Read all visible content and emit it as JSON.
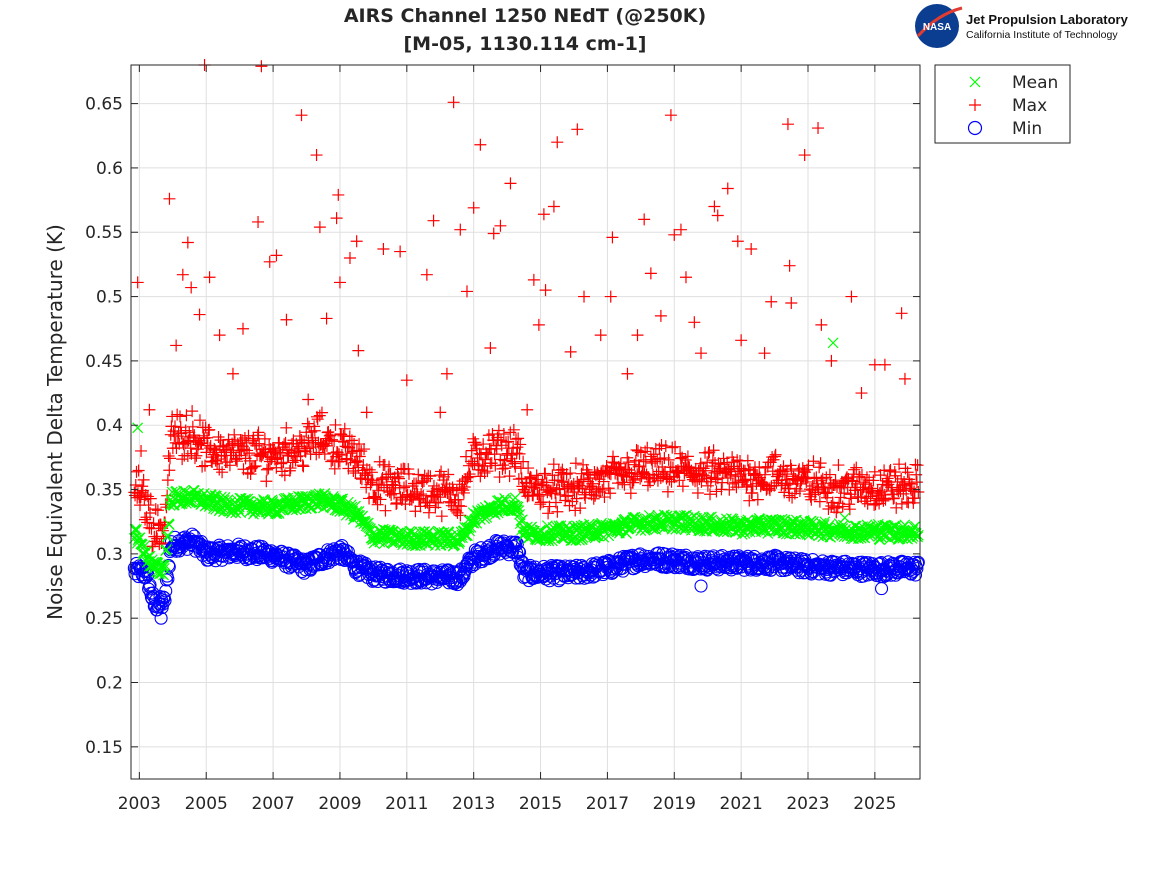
{
  "logo": {
    "badge_text": "NASA",
    "org_name": "Jet Propulsion Laboratory",
    "org_sub": "California Institute of Technology"
  },
  "colors": {
    "mean": "#00ff00",
    "max": "#ff0000",
    "min": "#0000ff",
    "axis": "#262626",
    "grid": "#dfdfdf",
    "logo_badge": "#0b3d91"
  },
  "chart_data": {
    "type": "scatter",
    "title": [
      "AIRS Channel 1250 NEdT (@250K)",
      "[M-05, 1130.114 cm-1]"
    ],
    "xlabel": "",
    "ylabel": "Noise Equivalent Delta Temperature (K)",
    "xlim": [
      2002.75,
      2026.35
    ],
    "ylim": [
      0.125,
      0.68
    ],
    "xticks": [
      2003,
      2005,
      2007,
      2009,
      2011,
      2013,
      2015,
      2017,
      2019,
      2021,
      2023,
      2025
    ],
    "yticks": [
      0.15,
      0.2,
      0.25,
      0.3,
      0.35,
      0.4,
      0.45,
      0.5,
      0.55,
      0.6,
      0.65
    ],
    "ytick_labels": [
      "0.15",
      "0.2",
      "0.25",
      "0.3",
      "0.35",
      "0.4",
      "0.45",
      "0.5",
      "0.55",
      "0.6",
      "0.65"
    ],
    "grid": true,
    "legend_position": "outside-top-right",
    "series": [
      {
        "name": "Mean",
        "marker": "x",
        "color": "#00ff00",
        "baseline": [
          [
            2002.85,
            0.318
          ],
          [
            2003.2,
            0.3
          ],
          [
            2003.45,
            0.288
          ],
          [
            2003.75,
            0.289
          ],
          [
            2003.95,
            0.343
          ],
          [
            2004.6,
            0.344
          ],
          [
            2005.5,
            0.338
          ],
          [
            2007.0,
            0.336
          ],
          [
            2008.4,
            0.342
          ],
          [
            2009.0,
            0.338
          ],
          [
            2009.5,
            0.331
          ],
          [
            2010.0,
            0.314
          ],
          [
            2011.0,
            0.312
          ],
          [
            2012.0,
            0.312
          ],
          [
            2012.6,
            0.311
          ],
          [
            2013.0,
            0.328
          ],
          [
            2013.7,
            0.337
          ],
          [
            2014.3,
            0.339
          ],
          [
            2014.5,
            0.316
          ],
          [
            2016.0,
            0.316
          ],
          [
            2017.0,
            0.319
          ],
          [
            2018.0,
            0.324
          ],
          [
            2019.0,
            0.325
          ],
          [
            2020.0,
            0.323
          ],
          [
            2021.0,
            0.321
          ],
          [
            2022.0,
            0.322
          ],
          [
            2023.0,
            0.32
          ],
          [
            2024.0,
            0.318
          ],
          [
            2025.0,
            0.317
          ],
          [
            2026.3,
            0.317
          ]
        ],
        "outliers": [
          [
            2002.95,
            0.398
          ],
          [
            2023.75,
            0.464
          ],
          [
            2024.1,
            0.328
          ],
          [
            2025.1,
            0.323
          ]
        ]
      },
      {
        "name": "Max",
        "marker": "+",
        "color": "#ff0000",
        "baseline": [
          [
            2002.85,
            0.345
          ],
          [
            2003.2,
            0.33
          ],
          [
            2003.45,
            0.31
          ],
          [
            2003.75,
            0.312
          ],
          [
            2003.95,
            0.382
          ],
          [
            2004.6,
            0.385
          ],
          [
            2005.0,
            0.372
          ],
          [
            2006.0,
            0.368
          ],
          [
            2007.0,
            0.368
          ],
          [
            2008.0,
            0.375
          ],
          [
            2008.4,
            0.383
          ],
          [
            2009.0,
            0.373
          ],
          [
            2009.5,
            0.366
          ],
          [
            2010.0,
            0.345
          ],
          [
            2011.0,
            0.341
          ],
          [
            2012.0,
            0.339
          ],
          [
            2012.6,
            0.337
          ],
          [
            2013.0,
            0.365
          ],
          [
            2013.7,
            0.37
          ],
          [
            2014.3,
            0.372
          ],
          [
            2014.5,
            0.343
          ],
          [
            2015.0,
            0.342
          ],
          [
            2016.0,
            0.341
          ],
          [
            2017.0,
            0.348
          ],
          [
            2018.0,
            0.357
          ],
          [
            2019.0,
            0.356
          ],
          [
            2020.0,
            0.353
          ],
          [
            2021.0,
            0.351
          ],
          [
            2022.0,
            0.352
          ],
          [
            2023.0,
            0.346
          ],
          [
            2024.0,
            0.342
          ],
          [
            2025.0,
            0.343
          ],
          [
            2026.3,
            0.343
          ]
        ],
        "outliers": [
          [
            2002.95,
            0.511
          ],
          [
            2003.05,
            0.38
          ],
          [
            2003.3,
            0.412
          ],
          [
            2003.9,
            0.576
          ],
          [
            2004.1,
            0.462
          ],
          [
            2004.3,
            0.517
          ],
          [
            2004.45,
            0.542
          ],
          [
            2004.55,
            0.507
          ],
          [
            2004.8,
            0.486
          ],
          [
            2004.95,
            0.68
          ],
          [
            2005.1,
            0.515
          ],
          [
            2005.4,
            0.47
          ],
          [
            2005.8,
            0.44
          ],
          [
            2006.1,
            0.475
          ],
          [
            2006.55,
            0.558
          ],
          [
            2006.65,
            0.679
          ],
          [
            2006.9,
            0.527
          ],
          [
            2007.1,
            0.532
          ],
          [
            2007.4,
            0.482
          ],
          [
            2007.85,
            0.641
          ],
          [
            2008.05,
            0.42
          ],
          [
            2008.3,
            0.61
          ],
          [
            2008.4,
            0.554
          ],
          [
            2008.6,
            0.483
          ],
          [
            2008.9,
            0.561
          ],
          [
            2008.95,
            0.579
          ],
          [
            2009.0,
            0.511
          ],
          [
            2009.3,
            0.53
          ],
          [
            2009.5,
            0.543
          ],
          [
            2009.55,
            0.458
          ],
          [
            2009.8,
            0.41
          ],
          [
            2010.3,
            0.537
          ],
          [
            2010.8,
            0.535
          ],
          [
            2011.0,
            0.435
          ],
          [
            2011.6,
            0.517
          ],
          [
            2011.8,
            0.559
          ],
          [
            2012.0,
            0.41
          ],
          [
            2012.2,
            0.44
          ],
          [
            2012.4,
            0.651
          ],
          [
            2012.6,
            0.552
          ],
          [
            2012.8,
            0.504
          ],
          [
            2013.0,
            0.569
          ],
          [
            2013.2,
            0.618
          ],
          [
            2013.5,
            0.46
          ],
          [
            2013.6,
            0.549
          ],
          [
            2013.8,
            0.555
          ],
          [
            2014.1,
            0.588
          ],
          [
            2014.6,
            0.412
          ],
          [
            2014.8,
            0.513
          ],
          [
            2014.95,
            0.478
          ],
          [
            2015.1,
            0.564
          ],
          [
            2015.15,
            0.505
          ],
          [
            2015.4,
            0.57
          ],
          [
            2015.5,
            0.62
          ],
          [
            2015.9,
            0.457
          ],
          [
            2016.1,
            0.63
          ],
          [
            2016.3,
            0.5
          ],
          [
            2016.8,
            0.47
          ],
          [
            2017.1,
            0.5
          ],
          [
            2017.15,
            0.546
          ],
          [
            2017.6,
            0.44
          ],
          [
            2017.9,
            0.47
          ],
          [
            2018.1,
            0.56
          ],
          [
            2018.3,
            0.518
          ],
          [
            2018.6,
            0.485
          ],
          [
            2018.9,
            0.641
          ],
          [
            2019.0,
            0.548
          ],
          [
            2019.2,
            0.552
          ],
          [
            2019.35,
            0.515
          ],
          [
            2019.6,
            0.48
          ],
          [
            2019.8,
            0.456
          ],
          [
            2020.2,
            0.57
          ],
          [
            2020.3,
            0.563
          ],
          [
            2020.6,
            0.584
          ],
          [
            2020.9,
            0.543
          ],
          [
            2021.0,
            0.466
          ],
          [
            2021.3,
            0.537
          ],
          [
            2021.7,
            0.456
          ],
          [
            2021.9,
            0.496
          ],
          [
            2022.4,
            0.634
          ],
          [
            2022.45,
            0.524
          ],
          [
            2022.5,
            0.495
          ],
          [
            2022.9,
            0.61
          ],
          [
            2023.3,
            0.631
          ],
          [
            2023.4,
            0.478
          ],
          [
            2023.7,
            0.45
          ],
          [
            2024.3,
            0.5
          ],
          [
            2024.6,
            0.425
          ],
          [
            2025.0,
            0.447
          ],
          [
            2025.3,
            0.447
          ],
          [
            2025.8,
            0.487
          ],
          [
            2025.9,
            0.436
          ]
        ]
      },
      {
        "name": "Min",
        "marker": "o",
        "color": "#0000ff",
        "baseline": [
          [
            2002.85,
            0.287
          ],
          [
            2003.2,
            0.285
          ],
          [
            2003.45,
            0.26
          ],
          [
            2003.75,
            0.262
          ],
          [
            2003.95,
            0.307
          ],
          [
            2004.6,
            0.31
          ],
          [
            2005.0,
            0.3
          ],
          [
            2006.0,
            0.302
          ],
          [
            2007.0,
            0.299
          ],
          [
            2008.0,
            0.29
          ],
          [
            2008.4,
            0.296
          ],
          [
            2009.0,
            0.302
          ],
          [
            2009.5,
            0.29
          ],
          [
            2010.0,
            0.284
          ],
          [
            2011.0,
            0.283
          ],
          [
            2012.0,
            0.282
          ],
          [
            2012.6,
            0.282
          ],
          [
            2013.0,
            0.297
          ],
          [
            2013.7,
            0.305
          ],
          [
            2014.3,
            0.305
          ],
          [
            2014.5,
            0.285
          ],
          [
            2015.0,
            0.285
          ],
          [
            2016.0,
            0.285
          ],
          [
            2017.0,
            0.289
          ],
          [
            2018.0,
            0.296
          ],
          [
            2019.0,
            0.295
          ],
          [
            2020.0,
            0.293
          ],
          [
            2021.0,
            0.293
          ],
          [
            2022.0,
            0.293
          ],
          [
            2023.0,
            0.29
          ],
          [
            2024.0,
            0.289
          ],
          [
            2025.0,
            0.288
          ],
          [
            2026.3,
            0.289
          ]
        ],
        "outliers": [
          [
            2003.65,
            0.25
          ],
          [
            2019.8,
            0.275
          ],
          [
            2025.2,
            0.273
          ]
        ]
      }
    ]
  }
}
